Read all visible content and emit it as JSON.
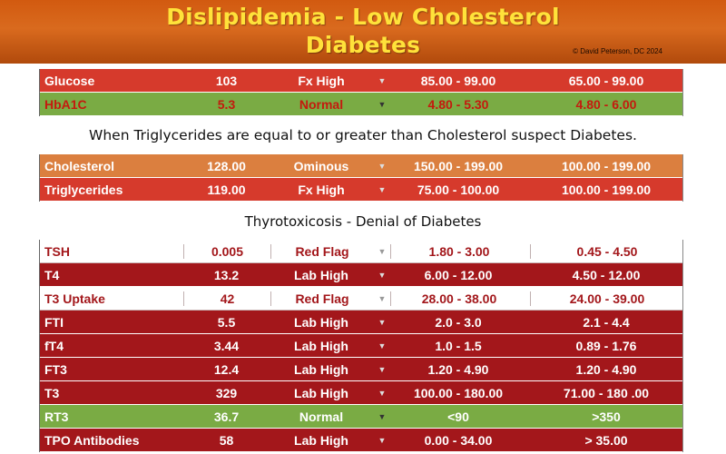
{
  "header": {
    "title_line1": "Dislipidemia - Low Cholesterol",
    "title_line2": "Diabetes",
    "copyright": "© David Peterson, DC 2024"
  },
  "table1": [
    {
      "name": "Glucose",
      "value": "103",
      "status": "Fx High",
      "ref1": "85.00 - 99.00",
      "ref2": "65.00 - 99.00",
      "style": "red"
    },
    {
      "name": "HbA1C",
      "value": "5.3",
      "status": "Normal",
      "ref1": "4.80 - 5.30",
      "ref2": "4.80 - 6.00",
      "style": "green"
    }
  ],
  "note1": "When Triglycerides are equal to or greater than Cholesterol suspect Diabetes.",
  "table2": [
    {
      "name": "Cholesterol",
      "value": "128.00",
      "status": "Ominous",
      "ref1": "150.00 - 199.00",
      "ref2": "100.00 - 199.00",
      "style": "orange"
    },
    {
      "name": "Triglycerides",
      "value": "119.00",
      "status": "Fx High",
      "ref1": "75.00 - 100.00",
      "ref2": "100.00 - 199.00",
      "style": "red"
    }
  ],
  "note2": "Thyrotoxicosis - Denial of Diabetes",
  "table3": [
    {
      "name": "TSH",
      "value": "0.005",
      "status": "Red Flag",
      "ref1": "1.80 - 3.00",
      "ref2": "0.45 - 4.50",
      "style": "white"
    },
    {
      "name": "T4",
      "value": "13.2",
      "status": "Lab High",
      "ref1": "6.00 - 12.00",
      "ref2": "4.50 - 12.00",
      "style": "dark"
    },
    {
      "name": "T3 Uptake",
      "value": "42",
      "status": "Red Flag",
      "ref1": "28.00 - 38.00",
      "ref2": "24.00 - 39.00",
      "style": "white"
    },
    {
      "name": "FTI",
      "value": "5.5",
      "status": "Lab High",
      "ref1": "2.0 - 3.0",
      "ref2": "2.1 - 4.4",
      "style": "dark"
    },
    {
      "name": "fT4",
      "value": "3.44",
      "status": "Lab High",
      "ref1": "1.0 - 1.5",
      "ref2": "0.89 - 1.76",
      "style": "dark"
    },
    {
      "name": "FT3",
      "value": "12.4",
      "status": "Lab High",
      "ref1": "1.20 - 4.90",
      "ref2": "1.20 - 4.90",
      "style": "dark"
    },
    {
      "name": "T3",
      "value": "329",
      "status": "Lab High",
      "ref1": "100.00 - 180.00",
      "ref2": "71.00 - 180 .00",
      "style": "dark"
    },
    {
      "name": "RT3",
      "value": "36.7",
      "status": "Normal",
      "ref1": "<90",
      "ref2": ">350",
      "style": "green light"
    },
    {
      "name": "TPO Antibodies",
      "value": "58",
      "status": "Lab High",
      "ref1": "0.00 - 34.00",
      "ref2": "> 35.00",
      "style": "dark"
    }
  ],
  "colors": {
    "header_orange": "#d25a10",
    "title_yellow": "#ffe23a",
    "red": "#d63a2c",
    "dark_red": "#a3171b",
    "green": "#7aab44",
    "orange": "#db7f3f"
  },
  "icons": {
    "dropdown": "caret-down-icon"
  }
}
